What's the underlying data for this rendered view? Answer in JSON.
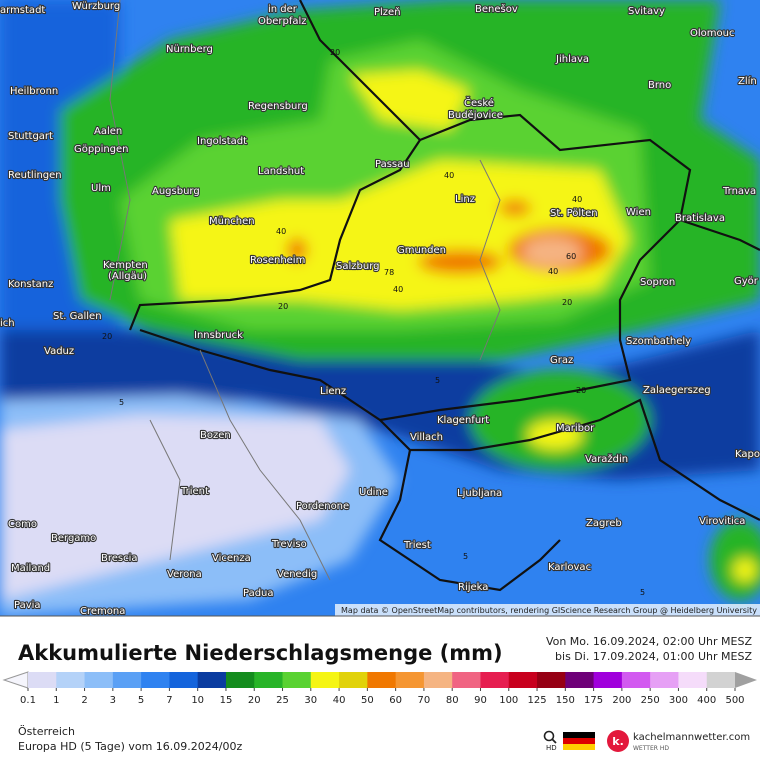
{
  "map": {
    "cities": [
      "armstadt",
      "Würzburg",
      "in der",
      "Oberpfalz",
      "Plzeň",
      "Benešov",
      "Svitavy",
      "Olomouc",
      "Nürnberg",
      "Jihlava",
      "Brno",
      "Zlín",
      "Heilbronn",
      "Regensburg",
      "České",
      "Budějovice",
      "Aalen",
      "Stuttgart",
      "Ingolstadt",
      "Göppingen",
      "Passau",
      "Landshut",
      "Reutlingen",
      "Ulm",
      "Augsburg",
      "Linz",
      "Trnava",
      "St. Pölten",
      "Wien",
      "Bratislava",
      "München",
      "Kempten",
      "(Allgäu)",
      "Rosenheim",
      "Salzburg",
      "Gmunden",
      "Sopron",
      "Györ",
      "Konstanz",
      "St. Gallen",
      "Innsbruck",
      "Vaduz",
      "Szombathely",
      "Graz",
      "Lienz",
      "Zalaegerszeg",
      "Klagenfurt",
      "Maribor",
      "Bozen",
      "Villach",
      "Kapo",
      "Varaždin",
      "Trient",
      "Udine",
      "Ljubljana",
      "Pordenone",
      "Zagreb",
      "Virovitica",
      "Como",
      "Bergamo",
      "Treviso",
      "Triest",
      "Brescia",
      "Vicenza",
      "Karlovac",
      "Mailand",
      "Verona",
      "Venedig",
      "Rijeka",
      "Padua",
      "Pavia",
      "Cremona",
      "ich"
    ],
    "contour_labels": [
      "20",
      "40",
      "40",
      "40",
      "60",
      "40",
      "78",
      "40",
      "20",
      "20",
      "20",
      "5",
      "5",
      "20",
      "5",
      "5"
    ],
    "attribution": "Map data © OpenStreetMap contributors, rendering GIScience Research Group @ Heidelberg University"
  },
  "footer": {
    "title": "Akkumulierte Niederschlagsmenge (mm)",
    "period_from": "Von Mo. 16.09.2024, 02:00 Uhr MESZ",
    "period_to": "bis Di. 17.09.2024, 01:00 Uhr MESZ",
    "legend": [
      {
        "label": "0.1",
        "color": "#dcdcf5"
      },
      {
        "label": "1",
        "color": "#b4d2f8"
      },
      {
        "label": "2",
        "color": "#8cbef8"
      },
      {
        "label": "3",
        "color": "#5aa0f5"
      },
      {
        "label": "5",
        "color": "#2f82f0"
      },
      {
        "label": "7",
        "color": "#1464dc"
      },
      {
        "label": "10",
        "color": "#0a3ca0"
      },
      {
        "label": "15",
        "color": "#148c1e"
      },
      {
        "label": "20",
        "color": "#28b428"
      },
      {
        "label": "25",
        "color": "#5ad232"
      },
      {
        "label": "30",
        "color": "#f5f514"
      },
      {
        "label": "40",
        "color": "#e1d20a"
      },
      {
        "label": "50",
        "color": "#f07800"
      },
      {
        "label": "60",
        "color": "#f59632"
      },
      {
        "label": "70",
        "color": "#f5b482"
      },
      {
        "label": "80",
        "color": "#f06482"
      },
      {
        "label": "90",
        "color": "#e61e50"
      },
      {
        "label": "100",
        "color": "#c8001e"
      },
      {
        "label": "125",
        "color": "#960014"
      },
      {
        "label": "150",
        "color": "#6e0078"
      },
      {
        "label": "175",
        "color": "#a000dc"
      },
      {
        "label": "200",
        "color": "#d25af0"
      },
      {
        "label": "250",
        "color": "#e6a0f5"
      },
      {
        "label": "300",
        "color": "#f5dcfa"
      },
      {
        "label": "400",
        "color": "#d2d2d2"
      },
      {
        "label": "500",
        "color": "#a0a0a0"
      }
    ],
    "region": "Österreich",
    "model": "Europa HD (5 Tage) vom  16.09.2024/00z",
    "hd": "HD",
    "site": "kachelmannwetter.com",
    "brand": "WETTER HD",
    "logo": "k."
  }
}
